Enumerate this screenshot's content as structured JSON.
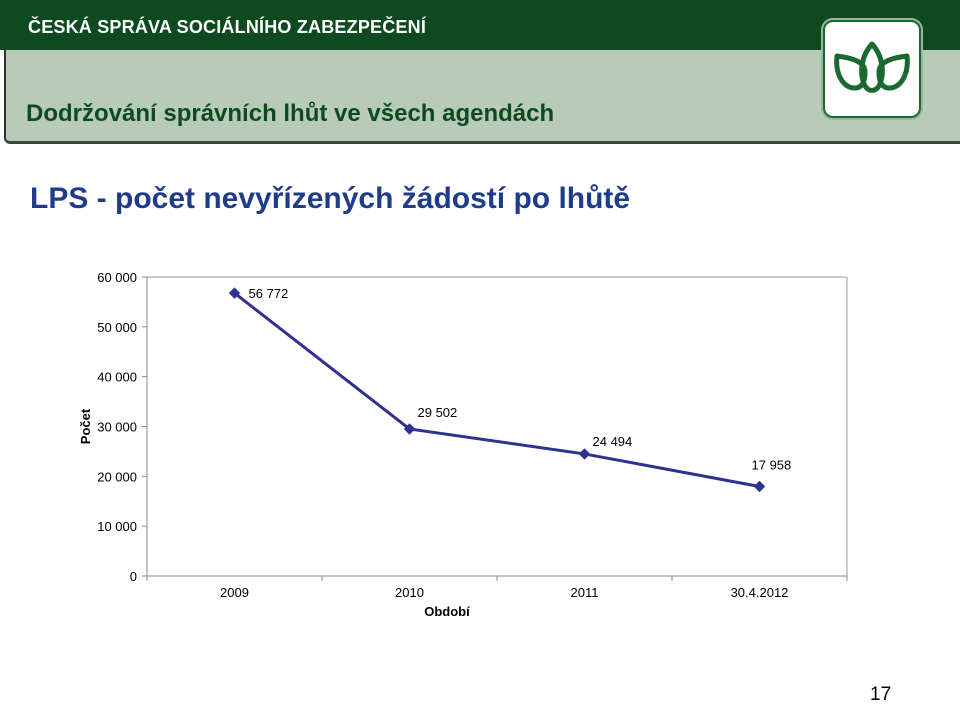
{
  "header": {
    "organization": "ČESKÁ SPRÁVA SOCIÁLNÍHO ZABEZPEČENÍ",
    "subtitle": "Dodržování správních lhůt ve všech agendách",
    "logo_icon": "leaf-logo-icon"
  },
  "slide": {
    "title": "LPS - počet nevyřízených žádostí po lhůtě",
    "page_number": "17"
  },
  "colors": {
    "header_bg": "#0d4a1f",
    "band_bg": "#b7cbb8",
    "title": "#1f3c88",
    "series": "#2e3192"
  },
  "chart_data": {
    "type": "line",
    "categories": [
      "2009",
      "2010",
      "2011",
      "30.4.2012"
    ],
    "series": [
      {
        "values": [
          56772,
          29502,
          24494,
          17958
        ],
        "labels": [
          "56 772",
          "29 502",
          "24 494",
          "17 958"
        ]
      }
    ],
    "xlabel": "Období",
    "ylabel": "Počet",
    "ylim": [
      0,
      60000
    ],
    "yticks": [
      0,
      10000,
      20000,
      30000,
      40000,
      50000,
      60000
    ],
    "ytick_labels": [
      "0",
      "10 000",
      "20 000",
      "30 000",
      "40 000",
      "50 000",
      "60 000"
    ],
    "grid": false,
    "legend": "none",
    "marker": "diamond"
  }
}
